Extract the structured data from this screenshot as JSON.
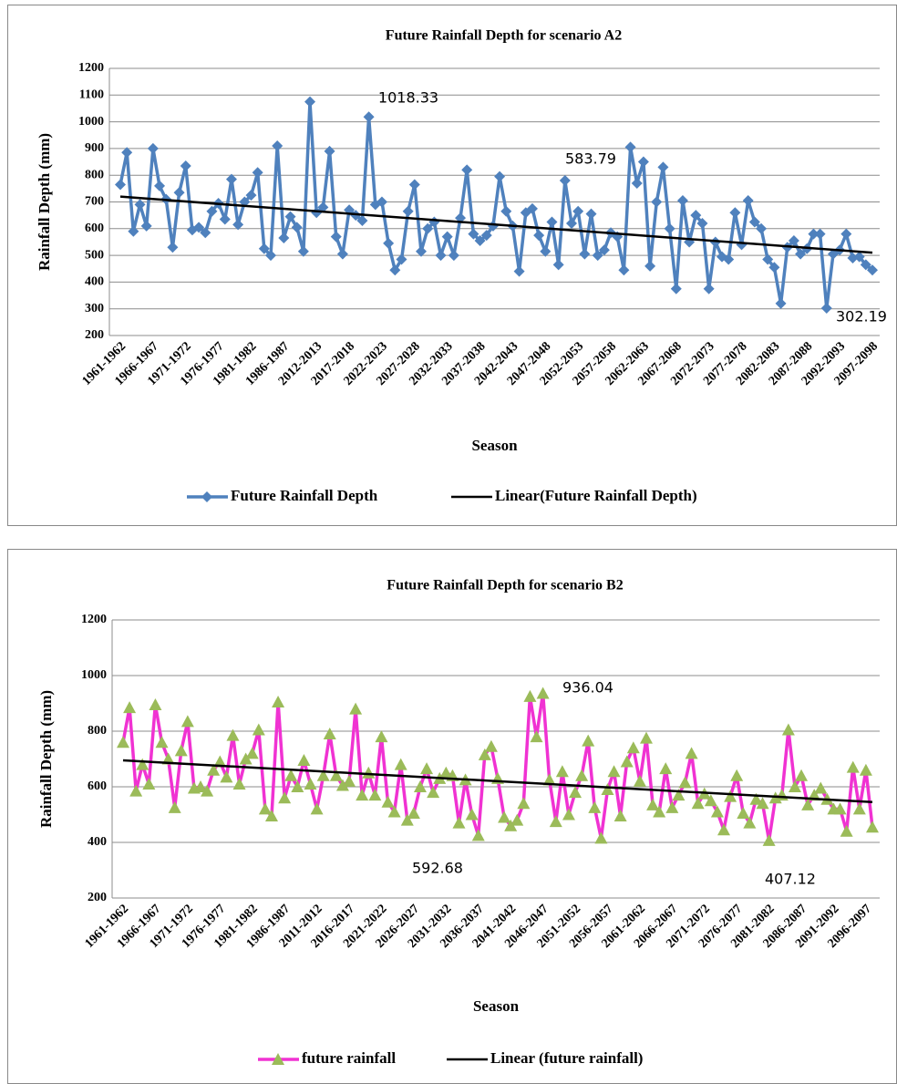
{
  "chart_data": [
    {
      "type": "line",
      "title": "Future Rainfall Depth for scenario A2",
      "x_label": "Season",
      "y_label": "Rainfall Depth (mm)",
      "marker": "diamond",
      "grid": true,
      "ylim": [
        200,
        1200
      ],
      "yticks": [
        200,
        300,
        400,
        500,
        600,
        700,
        800,
        900,
        1000,
        1100,
        1200
      ],
      "categories": [
        "1961-1962",
        null,
        null,
        null,
        null,
        "1966-1967",
        null,
        null,
        null,
        null,
        "1971-1972",
        null,
        null,
        null,
        null,
        "1976-1977",
        null,
        null,
        null,
        null,
        "1981-1982",
        null,
        null,
        null,
        null,
        "1986-1987",
        null,
        null,
        null,
        null,
        "2012-2013",
        null,
        null,
        null,
        null,
        "2017-2018",
        null,
        null,
        null,
        null,
        "2022-2023",
        null,
        null,
        null,
        null,
        "2027-2028",
        null,
        null,
        null,
        null,
        "2032-2033",
        null,
        null,
        null,
        null,
        "2037-2038",
        null,
        null,
        null,
        null,
        "2042-2043",
        null,
        null,
        null,
        null,
        "2047-2048",
        null,
        null,
        null,
        null,
        "2052-2053",
        null,
        null,
        null,
        null,
        "2057-2058",
        null,
        null,
        null,
        null,
        "2062-2063",
        null,
        null,
        null,
        null,
        "2067-2068",
        null,
        null,
        null,
        null,
        "2072-2073",
        null,
        null,
        null,
        null,
        "2077-2078",
        null,
        null,
        null,
        null,
        "2082-2083",
        null,
        null,
        null,
        null,
        "2087-2088",
        null,
        null,
        null,
        null,
        "2092-2093",
        null,
        null,
        null,
        null,
        "2097-2098"
      ],
      "series": [
        {
          "name": "Future Rainfall Depth",
          "color": "#4f81bd",
          "marker_color": "#4f81bd",
          "values": [
            765,
            885,
            590,
            690,
            610,
            900,
            760,
            710,
            530,
            735,
            835,
            595,
            605,
            585,
            665,
            695,
            635,
            785,
            615,
            700,
            725,
            810,
            525,
            500,
            910,
            565,
            645,
            605,
            515,
            1075,
            660,
            680,
            890,
            570,
            505,
            670,
            650,
            630,
            1018.33,
            690,
            700,
            545,
            445,
            485,
            665,
            765,
            515,
            600,
            625,
            500,
            570,
            500,
            640,
            820,
            580,
            555,
            575,
            610,
            795,
            665,
            610,
            440,
            660,
            675,
            575,
            515,
            625,
            465,
            780,
            620,
            665,
            505,
            655,
            500,
            520,
            585,
            570,
            445,
            905,
            770,
            850,
            460,
            700,
            830,
            600,
            375,
            705,
            550,
            650,
            620,
            375,
            550,
            495,
            485,
            660,
            540,
            705,
            625,
            600,
            485,
            455,
            320,
            530,
            555,
            505,
            525,
            580,
            580,
            302.19,
            505,
            520,
            580,
            490,
            495,
            465,
            445
          ]
        }
      ],
      "trend": {
        "name": "Linear(Future Rainfall Depth)",
        "color": "#000000",
        "start": 720,
        "end": 510
      },
      "annotations": [
        "1018.33",
        "583.79",
        "302.19"
      ]
    },
    {
      "type": "line",
      "title": "Future Rainfall Depth for scenario B2",
      "x_label": "Season",
      "y_label": "Rainfall Depth (mm)",
      "marker": "triangle",
      "grid": true,
      "ylim": [
        200,
        1200
      ],
      "yticks": [
        200,
        400,
        600,
        800,
        1000,
        1200
      ],
      "categories": [
        "1961-1962",
        null,
        null,
        null,
        null,
        "1966-1967",
        null,
        null,
        null,
        null,
        "1971-1972",
        null,
        null,
        null,
        null,
        "1976-1977",
        null,
        null,
        null,
        null,
        "1981-1982",
        null,
        null,
        null,
        null,
        "1986-1987",
        null,
        null,
        null,
        null,
        "2011-2012",
        null,
        null,
        null,
        null,
        "2016-2017",
        null,
        null,
        null,
        null,
        "2021-2022",
        null,
        null,
        null,
        null,
        "2026-2027",
        null,
        null,
        null,
        null,
        "2031-2032",
        null,
        null,
        null,
        null,
        "2036-2037",
        null,
        null,
        null,
        null,
        "2041-2042",
        null,
        null,
        null,
        null,
        "2046-2047",
        null,
        null,
        null,
        null,
        "2051-2052",
        null,
        null,
        null,
        null,
        "2056-2057",
        null,
        null,
        null,
        null,
        "2061-2062",
        null,
        null,
        null,
        null,
        "2066-2067",
        null,
        null,
        null,
        null,
        "2071-2072",
        null,
        null,
        null,
        null,
        "2076-2077",
        null,
        null,
        null,
        null,
        "2081-2082",
        null,
        null,
        null,
        null,
        "2086-2087",
        null,
        null,
        null,
        null,
        "2091-2092",
        null,
        null,
        null,
        null,
        "2096-2097",
        null
      ],
      "series": [
        {
          "name": "future rainfall",
          "color": "#f032d2",
          "marker_color": "#9bbb59",
          "values": [
            760,
            885,
            585,
            680,
            610,
            895,
            760,
            700,
            525,
            730,
            835,
            595,
            600,
            585,
            660,
            690,
            635,
            785,
            610,
            700,
            720,
            805,
            520,
            495,
            905,
            560,
            640,
            600,
            695,
            610,
            520,
            640,
            790,
            640,
            605,
            620,
            880,
            570,
            650,
            570,
            780,
            545,
            510,
            680,
            480,
            505,
            600,
            665,
            580,
            630,
            650,
            640,
            470,
            625,
            500,
            425,
            715,
            745,
            630,
            490,
            460,
            480,
            540,
            925,
            780,
            936.04,
            625,
            475,
            655,
            500,
            580,
            640,
            765,
            525,
            415,
            590,
            655,
            495,
            690,
            740,
            620,
            775,
            535,
            510,
            665,
            525,
            570,
            615,
            720,
            540,
            575,
            550,
            510,
            445,
            565,
            640,
            505,
            470,
            555,
            540,
            407.12,
            560,
            570,
            805,
            600,
            640,
            535,
            570,
            595,
            555,
            520,
            520,
            440,
            670,
            520,
            660,
            455
          ]
        }
      ],
      "trend": {
        "name": "Linear (future rainfall)",
        "color": "#000000",
        "start": 695,
        "end": 545
      },
      "annotations": [
        "936.04",
        "592.68",
        "407.12"
      ]
    }
  ]
}
